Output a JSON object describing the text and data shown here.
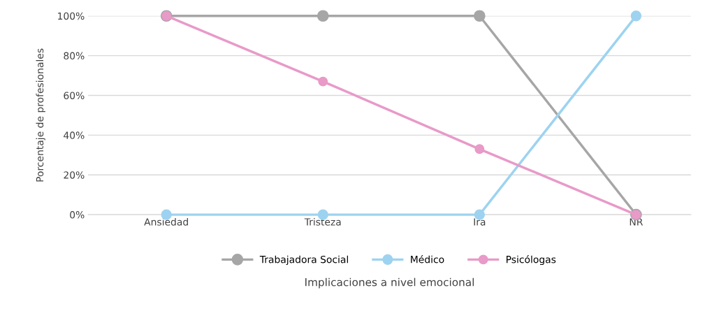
{
  "chart_data": {
    "type": "line",
    "xlabel": "Implicaciones a nivel emocional",
    "ylabel": "Porcentaje de profesionales",
    "categories": [
      "Ansiedad",
      "Tristeza",
      "Ira",
      "NR"
    ],
    "series": [
      {
        "name": "Trabajadora Social",
        "color": "#a6a6a6",
        "values": [
          100,
          100,
          100,
          0
        ]
      },
      {
        "name": "Médico",
        "color": "#9dd3f0",
        "values": [
          0,
          0,
          0,
          100
        ]
      },
      {
        "name": "Psicólogas",
        "color": "#e89ac8",
        "values": [
          100,
          67,
          33,
          0
        ]
      }
    ],
    "ylim": [
      0,
      100
    ],
    "yticks": [
      {
        "value": 0,
        "label": "0%"
      },
      {
        "value": 20,
        "label": "20%"
      },
      {
        "value": 40,
        "label": "40%"
      },
      {
        "value": 60,
        "label": "60%"
      },
      {
        "value": 80,
        "label": "80%"
      },
      {
        "value": 100,
        "label": "100%"
      }
    ],
    "grid": "y",
    "legend": "bottom",
    "marker": "circle",
    "line_style": "solid"
  }
}
